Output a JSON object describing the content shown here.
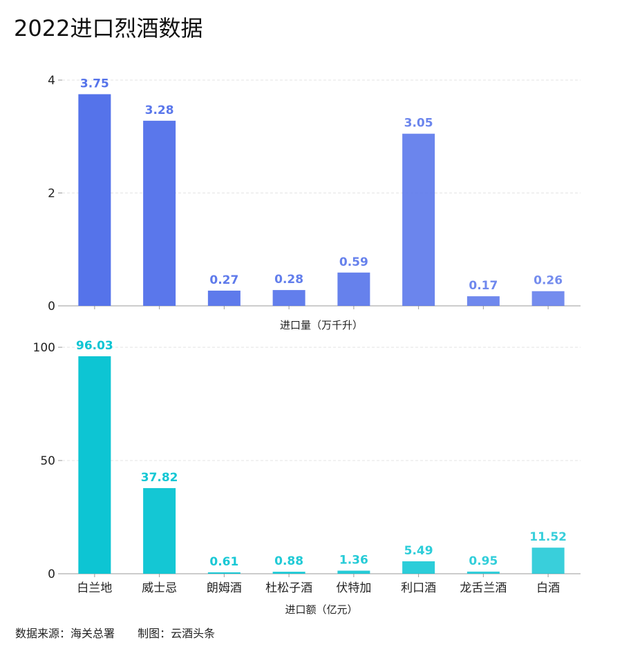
{
  "title": "2022进口烈酒数据",
  "source": {
    "data_source": "数据来源：海关总署",
    "made_by": "制图：云酒头条"
  },
  "colors": {
    "volume_bars": "#5573EA",
    "value_bars": "#0DC5D3",
    "grid": "#e3e3e3",
    "axis": "#999999"
  },
  "chart_data": [
    {
      "type": "bar",
      "ylabel": "",
      "xlabel": "进口量（万千升）",
      "ylim": [
        0,
        4
      ],
      "yticks": [
        0,
        2,
        4
      ],
      "grid": true,
      "categories": [
        "白兰地",
        "威士忌",
        "朗姆酒",
        "杜松子酒",
        "伏特加",
        "利口酒",
        "龙舌兰酒",
        "白酒"
      ],
      "values": [
        3.75,
        3.28,
        0.27,
        0.28,
        0.59,
        3.05,
        0.17,
        0.26
      ],
      "value_labels": [
        "3.75",
        "3.28",
        "0.27",
        "0.28",
        "0.59",
        "3.05",
        "0.17",
        "0.26"
      ]
    },
    {
      "type": "bar",
      "ylabel": "",
      "xlabel": "进口额（亿元）",
      "ylim": [
        0,
        100
      ],
      "yticks": [
        0,
        50,
        100
      ],
      "grid": true,
      "categories": [
        "白兰地",
        "威士忌",
        "朗姆酒",
        "杜松子酒",
        "伏特加",
        "利口酒",
        "龙舌兰酒",
        "白酒"
      ],
      "values": [
        96.03,
        37.82,
        0.61,
        0.88,
        1.36,
        5.49,
        0.95,
        11.52
      ],
      "value_labels": [
        "96.03",
        "37.82",
        "0.61",
        "0.88",
        "1.36",
        "5.49",
        "0.95",
        "11.52"
      ]
    }
  ]
}
